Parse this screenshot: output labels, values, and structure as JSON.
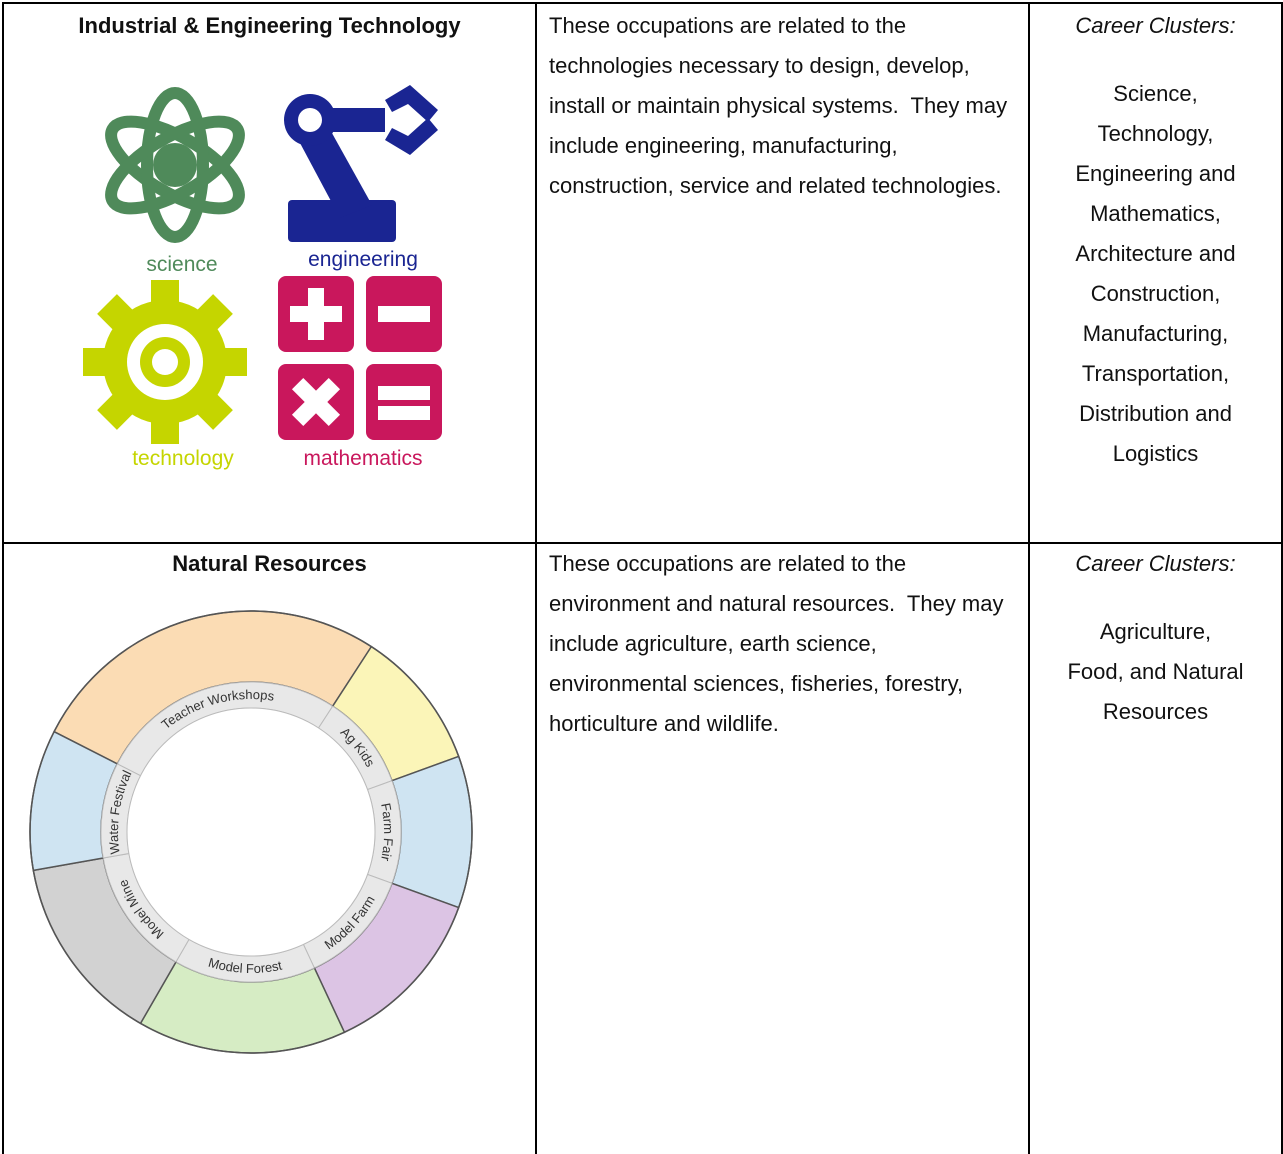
{
  "table": {
    "rows": [
      {
        "title": "Industrial & Engineering Technology",
        "image_labels": [
          "science",
          "engineering",
          "technology",
          "mathematics"
        ],
        "description": "These occupations are related to the technologies necessary to design, develop, install or maintain physical systems.  They may include engineering, manufacturing, construction, service and related technologies.",
        "clusters_label": "Career Clusters:",
        "clusters": [
          "Science,",
          "Technology,",
          "Engineering and",
          "Mathematics,",
          "Architecture and",
          "Construction,",
          "Manufacturing,",
          "Transportation,",
          "Distribution and",
          "Logistics"
        ]
      },
      {
        "title": "Natural Resources",
        "image_labels": [
          "Teacher Workshops",
          "Ag Kids",
          "Farm Fair",
          "Model Farm",
          "Model Forest",
          "Model Mine",
          "Water Festival"
        ],
        "description": "These occupations are related to the environment and natural resources.  They may include agriculture, earth science, environmental sciences, fisheries, forestry, horticulture and wildlife.",
        "clusters_label": "Career Clusters:",
        "clusters": [
          "Agriculture,",
          "Food, and Natural",
          "Resources"
        ]
      }
    ]
  }
}
